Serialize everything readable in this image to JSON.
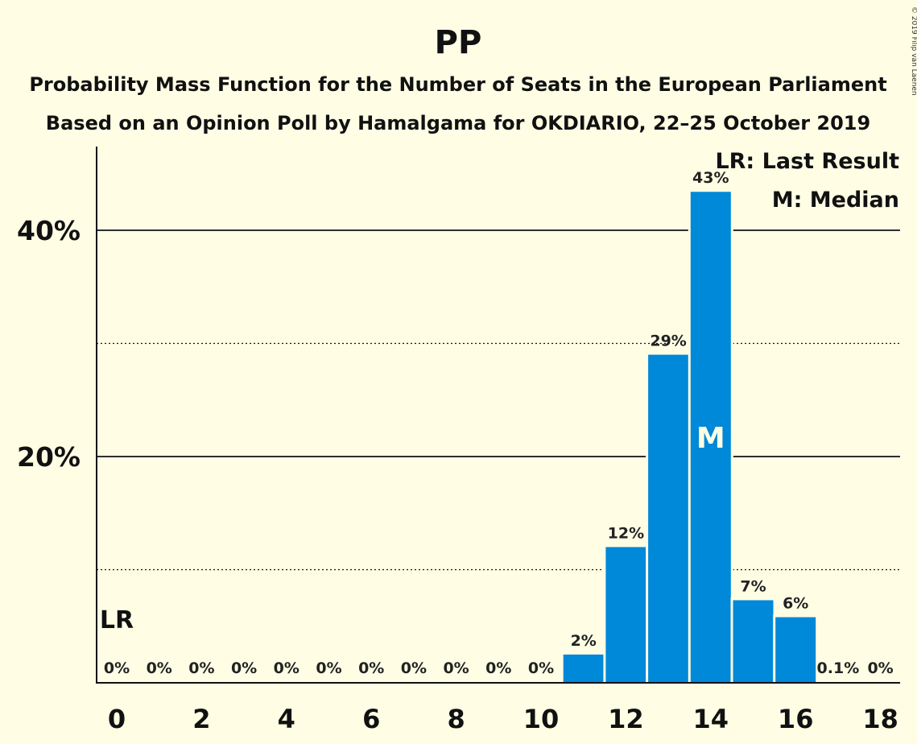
{
  "chart_data": {
    "type": "bar",
    "title": "PP",
    "subtitle": "Probability Mass Function for the Number of Seats in the European Parliament",
    "subtitle2": "Based on an Opinion Poll by Hamalgama for OKDIARIO, 22–25 October 2019",
    "copyright": "© 2019 Filip van Laenen",
    "categories": [
      0,
      1,
      2,
      3,
      4,
      5,
      6,
      7,
      8,
      9,
      10,
      11,
      12,
      13,
      14,
      15,
      16,
      17,
      18
    ],
    "values": [
      0,
      0,
      0,
      0,
      0,
      0,
      0,
      0,
      0,
      0,
      0,
      2.5,
      12,
      29,
      43.4,
      7.3,
      5.8,
      0.1,
      0
    ],
    "value_labels": [
      "0%",
      "0%",
      "0%",
      "0%",
      "0%",
      "0%",
      "0%",
      "0%",
      "0%",
      "0%",
      "0%",
      "2%",
      "12%",
      "29%",
      "43%",
      "7%",
      "6%",
      "0.1%",
      "0%"
    ],
    "x_tick_labels": [
      "0",
      "2",
      "4",
      "6",
      "8",
      "10",
      "12",
      "14",
      "16",
      "18"
    ],
    "x_tick_values": [
      0,
      2,
      4,
      6,
      8,
      10,
      12,
      14,
      16,
      18
    ],
    "y_tick_labels": [
      "20%",
      "40%"
    ],
    "y_tick_values": [
      20,
      40
    ],
    "ylim": [
      0,
      47
    ],
    "grid": {
      "solid": [
        20,
        40
      ],
      "dotted": [
        10,
        30
      ]
    },
    "bar_color": "#0088D9",
    "last_result": {
      "seat": 0,
      "label": "LR"
    },
    "median": {
      "seat": 14,
      "label": "M"
    },
    "legend": {
      "placement": "top-right",
      "lr_text": "LR: Last Result",
      "m_text": "M: Median"
    }
  }
}
